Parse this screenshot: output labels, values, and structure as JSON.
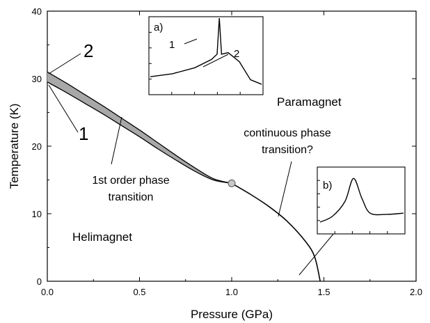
{
  "chart_data": {
    "type": "line",
    "xlabel": "Pressure (GPa)",
    "ylabel": "Temperature (K)",
    "xlim": [
      0,
      2.0
    ],
    "ylim": [
      0,
      40
    ],
    "x_ticks": [
      "0.0",
      "0.5",
      "1.0",
      "1.5",
      "2.0"
    ],
    "y_ticks": [
      "0",
      "10",
      "20",
      "30",
      "40"
    ],
    "series": [
      {
        "name": "",
        "points": [
          [
            0.0,
            31.0
          ],
          [
            0.1,
            29.4
          ],
          [
            0.2,
            27.7
          ],
          [
            0.3,
            26.0
          ],
          [
            0.4,
            24.2
          ],
          [
            0.5,
            22.4
          ],
          [
            0.6,
            20.5
          ],
          [
            0.7,
            18.6
          ],
          [
            0.8,
            16.8
          ],
          [
            0.9,
            15.2
          ],
          [
            1.0,
            14.5
          ]
        ]
      },
      {
        "name": "",
        "points": [
          [
            0.0,
            29.5
          ],
          [
            0.1,
            28.0
          ],
          [
            0.2,
            26.4
          ],
          [
            0.3,
            24.8
          ],
          [
            0.4,
            23.1
          ],
          [
            0.5,
            21.4
          ],
          [
            0.6,
            19.6
          ],
          [
            0.7,
            17.9
          ],
          [
            0.8,
            16.3
          ],
          [
            0.9,
            15.0
          ],
          [
            1.0,
            14.5
          ]
        ]
      },
      {
        "name": "",
        "points": [
          [
            1.0,
            14.5
          ],
          [
            1.1,
            12.9
          ],
          [
            1.2,
            11.1
          ],
          [
            1.3,
            8.9
          ],
          [
            1.4,
            5.9
          ],
          [
            1.45,
            3.6
          ],
          [
            1.48,
            0.0
          ]
        ]
      }
    ],
    "tricritical_point": [
      1.0,
      14.5
    ],
    "annotations": {
      "label_2": "2",
      "label_1": "1",
      "first_order": [
        "1st order phase",
        "transition"
      ],
      "continuous": [
        "continuous phase",
        "transition?"
      ],
      "paramagnet": "Paramagnet",
      "helimagnet": "Helimagnet"
    },
    "insets": [
      {
        "label": "a)",
        "curve_labels": [
          "1",
          "2"
        ],
        "description_series": [
          [
            0.0,
            0.78
          ],
          [
            0.2,
            0.74
          ],
          [
            0.4,
            0.66
          ],
          [
            0.55,
            0.55
          ],
          [
            0.6,
            0.48
          ],
          [
            0.62,
            0.0
          ],
          [
            0.64,
            0.48
          ],
          [
            0.7,
            0.46
          ],
          [
            0.8,
            0.58
          ],
          [
            0.9,
            0.82
          ],
          [
            1.0,
            0.88
          ]
        ]
      },
      {
        "label": "b)",
        "description_series": [
          [
            0.0,
            0.85
          ],
          [
            0.15,
            0.75
          ],
          [
            0.3,
            0.5
          ],
          [
            0.4,
            0.12
          ],
          [
            0.5,
            0.45
          ],
          [
            0.6,
            0.7
          ],
          [
            0.8,
            0.72
          ],
          [
            1.0,
            0.7
          ]
        ]
      }
    ],
    "grid": false,
    "colors": {
      "band_fill": "#a8a8a8",
      "point_fill": "#c8c8c8",
      "line": "#000000"
    }
  }
}
